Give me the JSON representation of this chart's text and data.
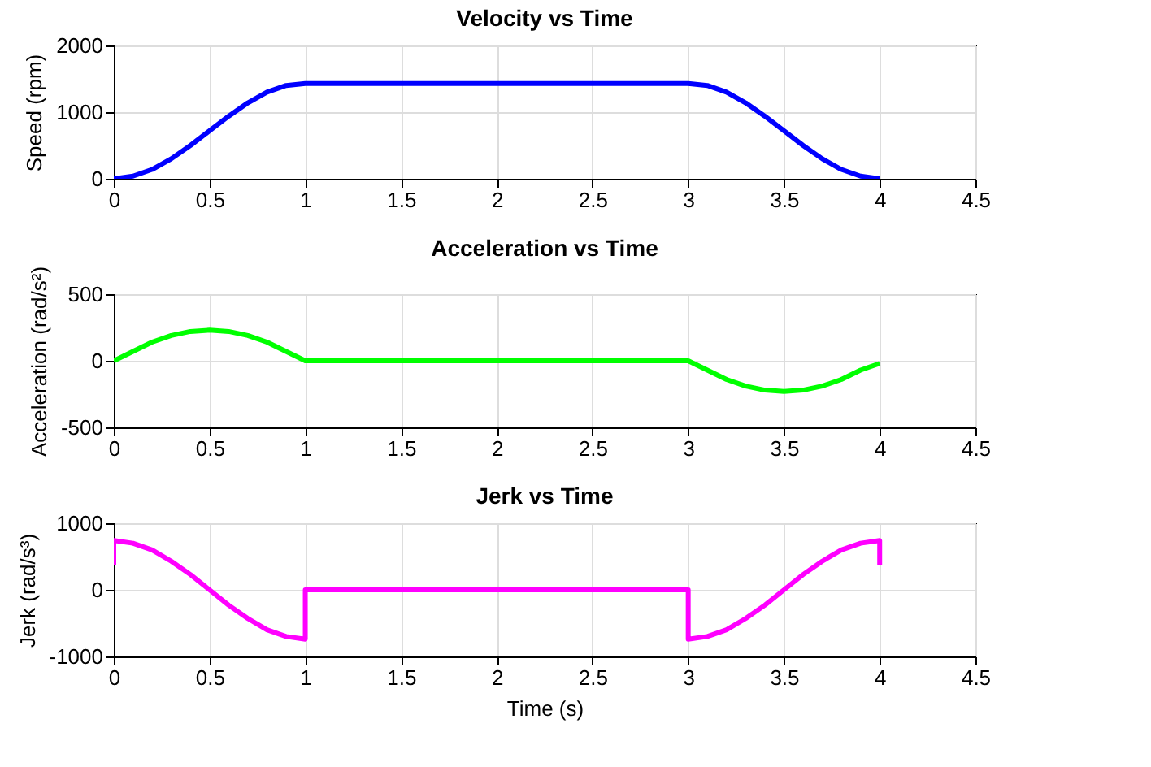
{
  "chart_data": [
    {
      "type": "line",
      "title": "Velocity vs Time",
      "ylabel": "Speed (rpm)",
      "xlim": [
        0,
        4.5
      ],
      "xticks": [
        0,
        0.5,
        1,
        1.5,
        2,
        2.5,
        3,
        3.5,
        4,
        4.5
      ],
      "ylim": [
        0,
        2000
      ],
      "yticks": [
        0,
        1000,
        2000
      ],
      "grid": true,
      "x": [
        0,
        0.1,
        0.2,
        0.3,
        0.4,
        0.5,
        0.6,
        0.7,
        0.8,
        0.9,
        1,
        2,
        3,
        3.1,
        3.2,
        3.3,
        3.4,
        3.5,
        3.6,
        3.7,
        3.8,
        3.9,
        4
      ],
      "series": [
        {
          "color": "#0000ff",
          "values": [
            0,
            40,
            140,
            300,
            500,
            720,
            940,
            1140,
            1300,
            1400,
            1430,
            1430,
            1430,
            1400,
            1300,
            1140,
            940,
            720,
            500,
            300,
            140,
            40,
            0
          ]
        }
      ]
    },
    {
      "type": "line",
      "title": "Acceleration vs Time",
      "ylabel": "Acceleration (rad/s²)",
      "xlim": [
        0,
        4.5
      ],
      "xticks": [
        0,
        0.5,
        1,
        1.5,
        2,
        2.5,
        3,
        3.5,
        4,
        4.5
      ],
      "ylim": [
        -500,
        500
      ],
      "yticks": [
        -500,
        0,
        500
      ],
      "grid": true,
      "x": [
        0,
        0.1,
        0.2,
        0.3,
        0.4,
        0.5,
        0.6,
        0.7,
        0.8,
        0.9,
        1,
        2,
        3,
        3.1,
        3.2,
        3.3,
        3.4,
        3.5,
        3.6,
        3.7,
        3.8,
        3.9,
        4
      ],
      "series": [
        {
          "color": "#00ff00",
          "values": [
            0,
            70,
            140,
            190,
            220,
            230,
            220,
            190,
            140,
            70,
            0,
            0,
            0,
            -70,
            -140,
            -190,
            -220,
            -230,
            -220,
            -190,
            -140,
            -70,
            -20
          ]
        }
      ]
    },
    {
      "type": "line",
      "title": "Jerk vs Time",
      "xlabel": "Time (s)",
      "ylabel": "Jerk (rad/s³)",
      "xlim": [
        0,
        4.5
      ],
      "xticks": [
        0,
        0.5,
        1,
        1.5,
        2,
        2.5,
        3,
        3.5,
        4,
        4.5
      ],
      "ylim": [
        -1000,
        1000
      ],
      "yticks": [
        -1000,
        0,
        1000
      ],
      "grid": true,
      "x": [
        0,
        0,
        0.1,
        0.2,
        0.3,
        0.4,
        0.5,
        0.6,
        0.7,
        0.8,
        0.9,
        1,
        1,
        2,
        3,
        3,
        3.1,
        3.2,
        3.3,
        3.4,
        3.5,
        3.6,
        3.7,
        3.8,
        3.9,
        4,
        4
      ],
      "series": [
        {
          "color": "#ff00ff",
          "values": [
            370,
            740,
            700,
            600,
            430,
            230,
            0,
            -230,
            -430,
            -600,
            -700,
            -740,
            0,
            0,
            0,
            -740,
            -700,
            -600,
            -430,
            -230,
            0,
            230,
            430,
            600,
            700,
            740,
            370
          ]
        }
      ]
    }
  ]
}
